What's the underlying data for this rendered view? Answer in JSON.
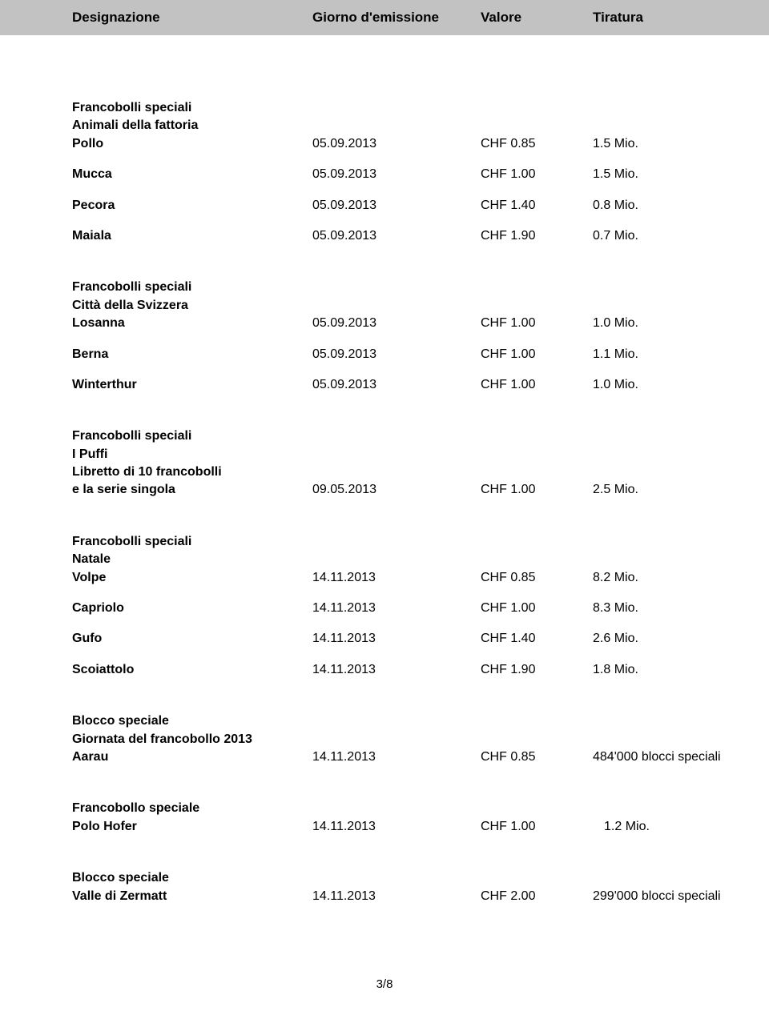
{
  "header": {
    "col1": "Designazione",
    "col2": "Giorno d'emissione",
    "col3": "Valore",
    "col4": "Tiratura"
  },
  "sections": {
    "fattoria": {
      "title1": "Francobolli speciali",
      "title2": "Animali della fattoria",
      "rows": [
        {
          "label": "Pollo",
          "date": "05.09.2013",
          "value": "CHF 0.85",
          "tiratura": "1.5 Mio."
        },
        {
          "label": "Mucca",
          "date": "05.09.2013",
          "value": "CHF 1.00",
          "tiratura": "1.5 Mio."
        },
        {
          "label": "Pecora",
          "date": "05.09.2013",
          "value": "CHF 1.40",
          "tiratura": "0.8 Mio."
        },
        {
          "label": "Maiala",
          "date": "05.09.2013",
          "value": "CHF 1.90",
          "tiratura": "0.7 Mio."
        }
      ]
    },
    "citta": {
      "title1": "Francobolli speciali",
      "title2": "Città della Svizzera",
      "rows": [
        {
          "label": "Losanna",
          "date": "05.09.2013",
          "value": "CHF 1.00",
          "tiratura": "1.0 Mio."
        },
        {
          "label": "Berna",
          "date": "05.09.2013",
          "value": "CHF 1.00",
          "tiratura": "1.1 Mio."
        },
        {
          "label": "Winterthur",
          "date": "05.09.2013",
          "value": "CHF 1.00",
          "tiratura": "1.0 Mio."
        }
      ]
    },
    "puffi": {
      "title1": "Francobolli speciali",
      "title2": "I Puffi",
      "title3": "Libretto di 10 francobolli",
      "rows": [
        {
          "label": "e la serie singola",
          "date": "09.05.2013",
          "value": "CHF 1.00",
          "tiratura": "2.5 Mio."
        }
      ]
    },
    "natale": {
      "title1": "Francobolli speciali",
      "title2": "Natale",
      "rows": [
        {
          "label": "Volpe",
          "date": "14.11.2013",
          "value": "CHF 0.85",
          "tiratura": "8.2 Mio."
        },
        {
          "label": "Capriolo",
          "date": "14.11.2013",
          "value": "CHF 1.00",
          "tiratura": "8.3 Mio."
        },
        {
          "label": "Gufo",
          "date": "14.11.2013",
          "value": "CHF 1.40",
          "tiratura": "2.6 Mio."
        },
        {
          "label": "Scoiattolo",
          "date": "14.11.2013",
          "value": "CHF 1.90",
          "tiratura": "1.8 Mio."
        }
      ]
    },
    "giornata": {
      "title1": "Blocco speciale",
      "title2": "Giornata del francobollo 2013",
      "rows": [
        {
          "label": "Aarau",
          "date": "14.11.2013",
          "value": "CHF 0.85",
          "tiratura": "484'000 blocci speciali"
        }
      ]
    },
    "polo": {
      "title1": "Francobollo speciale",
      "rows": [
        {
          "label": "Polo Hofer",
          "date": "14.11.2013",
          "value": "CHF 1.00",
          "tiratura": "1.2 Mio."
        }
      ]
    },
    "zermatt": {
      "title1": "Blocco speciale",
      "rows": [
        {
          "label": "Valle di Zermatt",
          "date": "14.11.2013",
          "value": "CHF 2.00",
          "tiratura": "299'000 blocci speciali"
        }
      ]
    }
  },
  "page": "3/8"
}
